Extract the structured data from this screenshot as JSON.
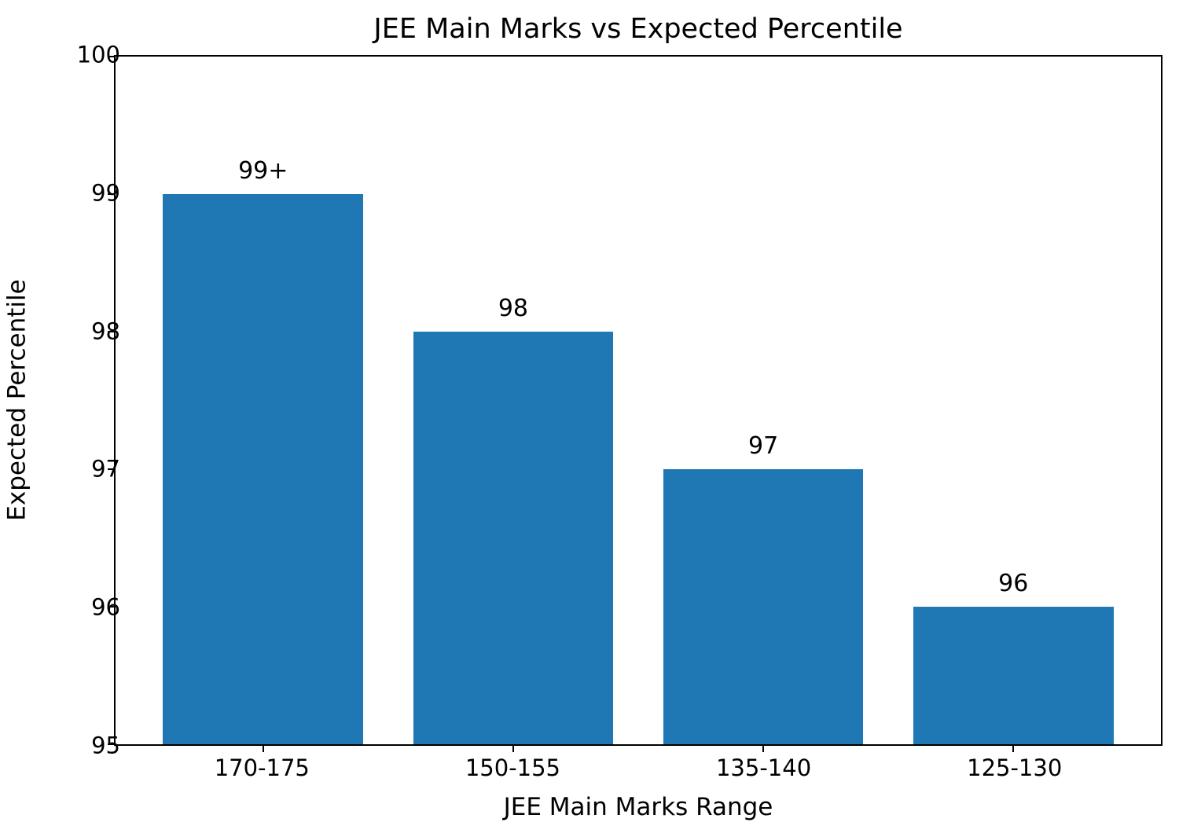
{
  "chart_data": {
    "type": "bar",
    "title": "JEE Main Marks vs Expected Percentile",
    "xlabel": "JEE Main Marks Range",
    "ylabel": "Expected Percentile",
    "categories": [
      "170-175",
      "150-155",
      "135-140",
      "125-130"
    ],
    "values": [
      99,
      98,
      97,
      96
    ],
    "bar_labels": [
      "99+",
      "98",
      "97",
      "96"
    ],
    "ylim": [
      95,
      100
    ],
    "yticks": [
      95,
      96,
      97,
      98,
      99,
      100
    ],
    "bar_color": "#1f77b4",
    "grid": false,
    "legend_position": "none"
  }
}
